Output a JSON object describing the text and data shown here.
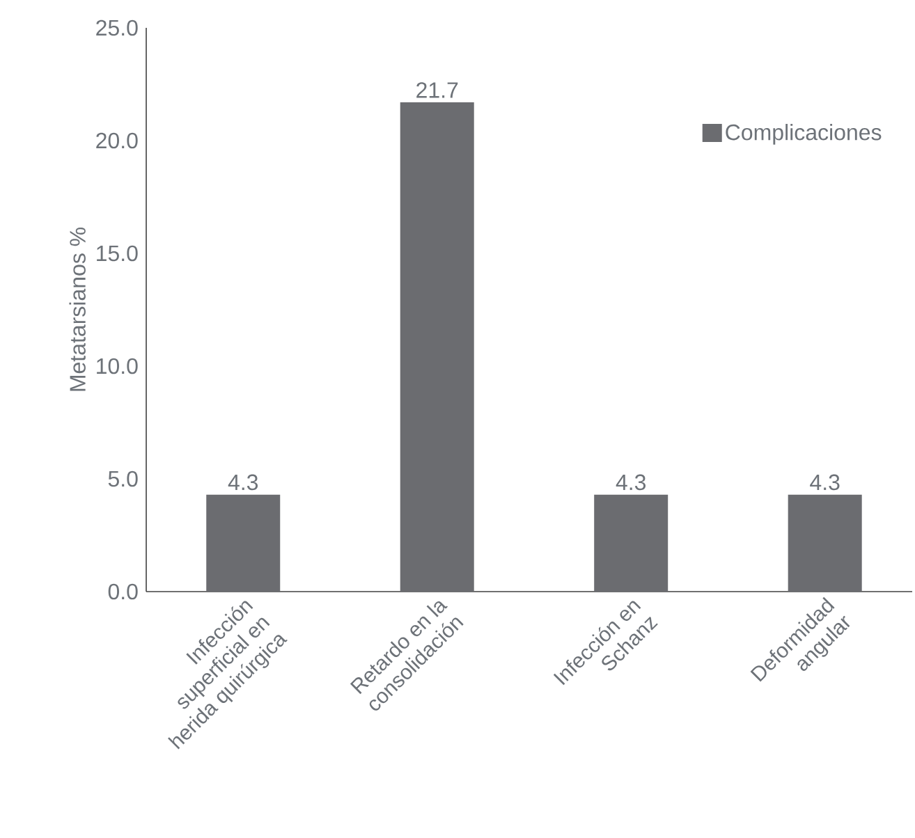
{
  "chart_data": {
    "type": "bar",
    "ylabel": "Metatarsianos %",
    "categories": [
      "Infección superficial en herida quirúrgica",
      "Retardo en la consolidación",
      "Infección en Schanz",
      "Deformidad angular"
    ],
    "series": [
      {
        "name": "Complicaciones",
        "color": "#6b6c70",
        "values": [
          4.3,
          21.7,
          4.3,
          4.3
        ]
      }
    ],
    "ylim": [
      0,
      25
    ],
    "yticks": [
      {
        "value": 0,
        "label": "0.0"
      },
      {
        "value": 5,
        "label": "5.0"
      },
      {
        "value": 10,
        "label": "10.0"
      },
      {
        "value": 15,
        "label": "15.0"
      },
      {
        "value": 20,
        "label": "20.0"
      },
      {
        "value": 25,
        "label": "25.0"
      }
    ],
    "data_labels": true,
    "legend": "top right",
    "grid": false
  }
}
